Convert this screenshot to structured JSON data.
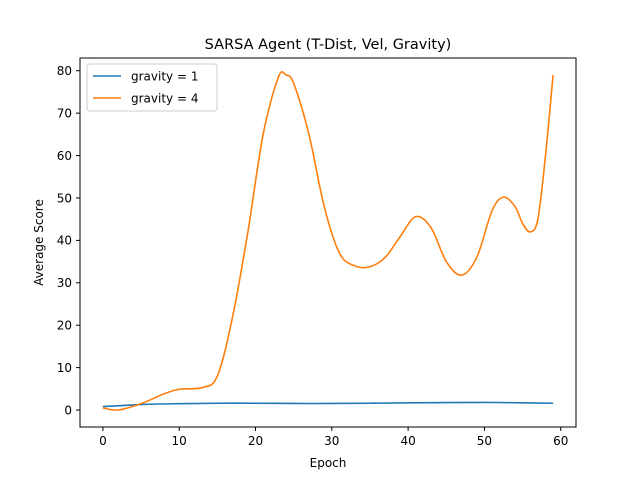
{
  "chart_data": {
    "type": "line",
    "title": "SARSA Agent (T-Dist, Vel, Gravity)",
    "xlabel": "Epoch",
    "ylabel": "Average Score",
    "xlim": [
      -3,
      62
    ],
    "ylim": [
      -4,
      83
    ],
    "xticks": [
      0,
      10,
      20,
      30,
      40,
      50,
      60
    ],
    "yticks": [
      0,
      10,
      20,
      30,
      40,
      50,
      60,
      70,
      80
    ],
    "grid": false,
    "legend": "top-left",
    "series": [
      {
        "name": "gravity = 1",
        "color": "#1f77b4",
        "x": [
          0,
          5,
          10,
          15,
          20,
          25,
          30,
          35,
          40,
          45,
          50,
          55,
          59
        ],
        "y": [
          0.8,
          1.3,
          1.5,
          1.6,
          1.6,
          1.55,
          1.55,
          1.6,
          1.7,
          1.75,
          1.8,
          1.7,
          1.6
        ]
      },
      {
        "name": "gravity = 4",
        "color": "#ff7f0e",
        "x": [
          0,
          2,
          5,
          8,
          10,
          13,
          15,
          17,
          19,
          21,
          23,
          24,
          25,
          27,
          29,
          31,
          33,
          35,
          37,
          39,
          41,
          43,
          45,
          47,
          49,
          51,
          52.5,
          54,
          55,
          56,
          57,
          58,
          59
        ],
        "y": [
          0.5,
          0,
          1.5,
          3.8,
          4.9,
          5.3,
          8,
          22,
          42,
          65,
          78.5,
          79,
          77,
          65,
          48,
          37,
          34,
          33.8,
          36,
          41,
          45.6,
          43,
          35,
          31.8,
          36,
          47,
          50.2,
          48,
          44,
          42,
          45,
          60,
          79
        ]
      }
    ]
  }
}
